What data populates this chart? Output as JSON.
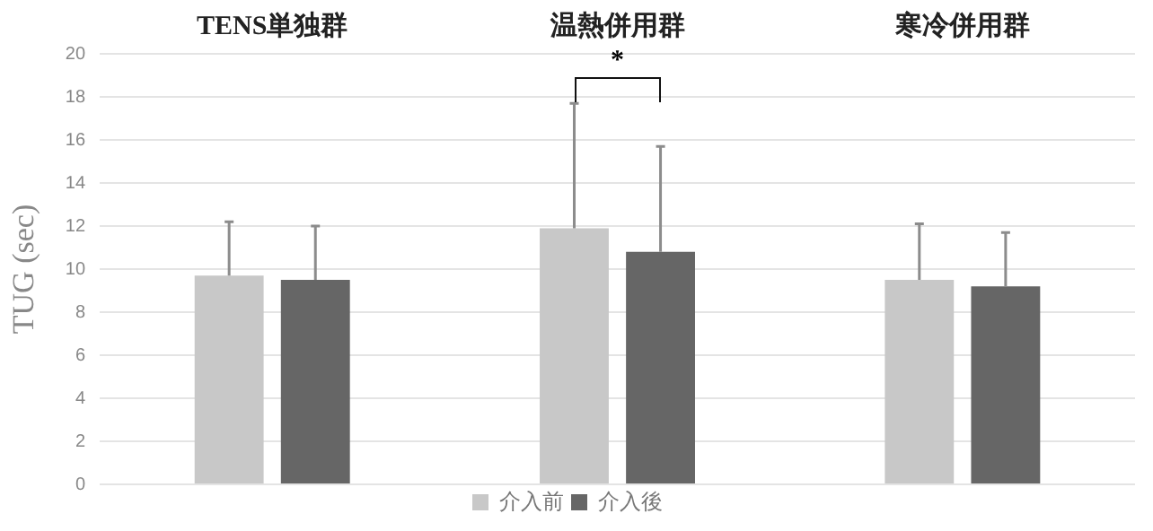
{
  "chart_data": {
    "type": "bar",
    "ylabel": "TUG (sec)",
    "categories": [
      "TENS単独群",
      "温熱併用群",
      "寒冷併用群"
    ],
    "series": [
      {
        "name": "介入前",
        "color": "#c8c8c8",
        "values": [
          9.7,
          11.9,
          9.5
        ],
        "errors": [
          [
            9.7,
            12.2
          ],
          [
            11.9,
            17.7
          ],
          [
            9.5,
            12.1
          ]
        ]
      },
      {
        "name": "介入後",
        "color": "#666666",
        "values": [
          9.5,
          10.8,
          9.2
        ],
        "errors": [
          [
            9.5,
            12.0
          ],
          [
            10.8,
            15.7
          ],
          [
            9.2,
            11.7
          ]
        ]
      }
    ],
    "ylim": [
      0,
      20
    ],
    "yticks": [
      0,
      2,
      4,
      6,
      8,
      10,
      12,
      14,
      16,
      18,
      20
    ],
    "grid": "y",
    "legend": "bottom",
    "annotations": [
      "*"
    ]
  }
}
